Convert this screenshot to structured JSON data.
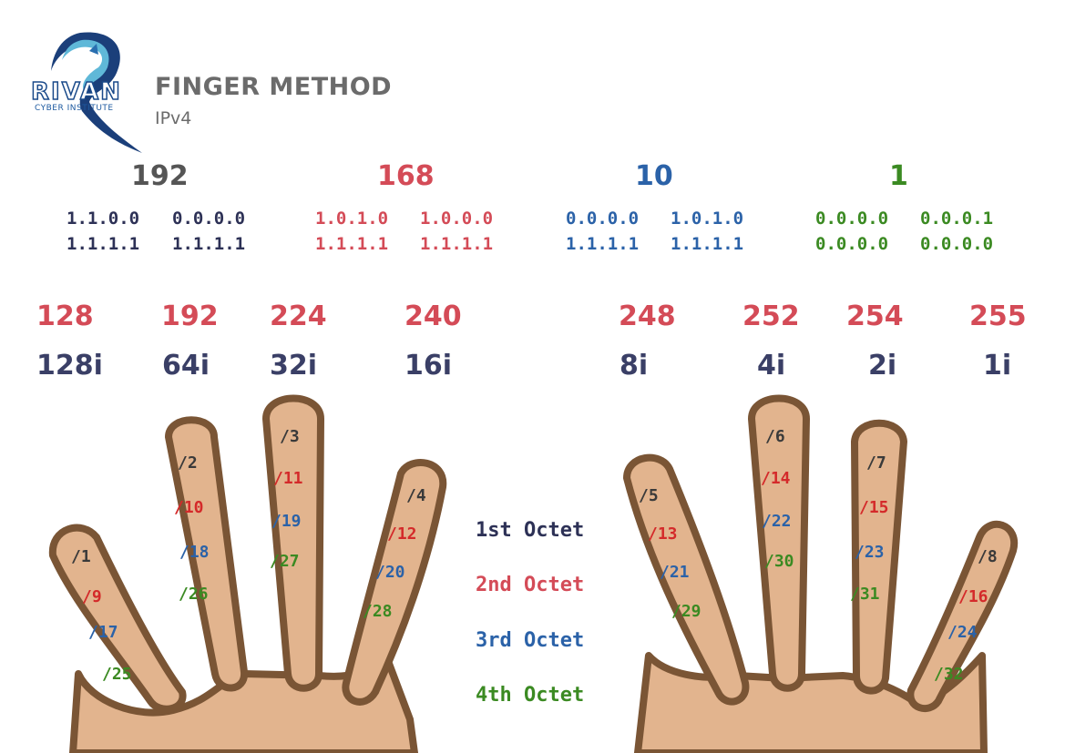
{
  "logo": {
    "name": "RIVAN",
    "sub": "CYBER INSTITUTE"
  },
  "header": {
    "title": "FINGER METHOD",
    "subtitle": "IPv4"
  },
  "octets": [
    {
      "value": "192",
      "color": "#555555",
      "bin": [
        "1.1.0.0",
        "0.0.0.0",
        "1.1.1.1",
        "1.1.1.1"
      ]
    },
    {
      "value": "168",
      "color": "#d44b57",
      "bin": [
        "1.0.1.0",
        "1.0.0.0",
        "1.1.1.1",
        "1.1.1.1"
      ]
    },
    {
      "value": "10",
      "color": "#2b62a8",
      "bin": [
        "0.0.0.0",
        "1.0.1.0",
        "1.1.1.1",
        "1.1.1.1"
      ]
    },
    {
      "value": "1",
      "color": "#3b8a22",
      "bin": [
        "0.0.0.0",
        "0.0.0.1",
        "0.0.0.0",
        "0.0.0.0"
      ]
    }
  ],
  "masks": [
    "128",
    "192",
    "224",
    "240",
    "248",
    "252",
    "254",
    "255"
  ],
  "hosts": [
    "128i",
    "64i",
    "32i",
    "16i",
    "8i",
    "4i",
    "2i",
    "1i"
  ],
  "fingers": [
    [
      "/1",
      "/9",
      "/17",
      "/25"
    ],
    [
      "/2",
      "/10",
      "/18",
      "/26"
    ],
    [
      "/3",
      "/11",
      "/19",
      "/27"
    ],
    [
      "/4",
      "/12",
      "/20",
      "/28"
    ],
    [
      "/5",
      "/13",
      "/21",
      "/29"
    ],
    [
      "/6",
      "/14",
      "/22",
      "/30"
    ],
    [
      "/7",
      "/15",
      "/23",
      "/31"
    ],
    [
      "/8",
      "/16",
      "/24",
      "/32"
    ]
  ],
  "legend": [
    "1st Octet",
    "2nd Octet",
    "3rd Octet",
    "4th Octet"
  ],
  "colors": {
    "first": "#3a3a3a",
    "second": "#d42a2a",
    "third": "#2b62a8",
    "fourth": "#3b8a22",
    "skin": "#e2b48e",
    "outline": "#7a5535",
    "mask": "#d44b57",
    "hosts": "#3a3f66"
  }
}
